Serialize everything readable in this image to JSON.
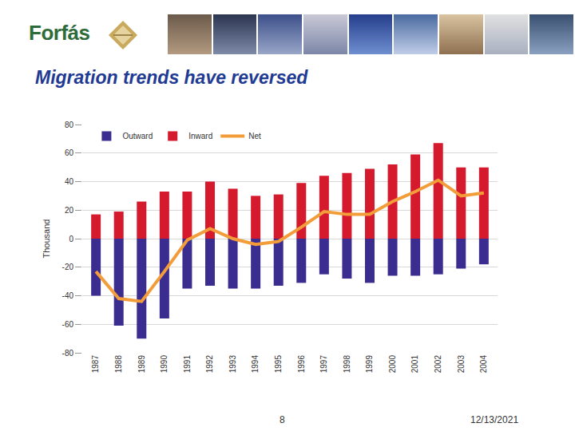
{
  "header": {
    "logo": "Forfás",
    "title": "Migration trends have reversed"
  },
  "footer": {
    "page": "8",
    "date": "12/13/2021"
  },
  "chart_data": {
    "type": "bar",
    "categories": [
      "1987",
      "1988",
      "1989",
      "1990",
      "1991",
      "1992",
      "1993",
      "1994",
      "1995",
      "1996",
      "1997",
      "1998",
      "1999",
      "2000",
      "2001",
      "2002",
      "2003",
      "2004"
    ],
    "series": [
      {
        "name": "Outward",
        "type": "bar",
        "color": "#3b2d8f",
        "values": [
          -40,
          -61,
          -70,
          -56,
          -35,
          -33,
          -35,
          -35,
          -33,
          -31,
          -25,
          -28,
          -31,
          -26,
          -26,
          -25,
          -21,
          -18
        ]
      },
      {
        "name": "Inward",
        "type": "bar",
        "color": "#d41a2c",
        "values": [
          17,
          19,
          26,
          33,
          33,
          40,
          35,
          30,
          31,
          39,
          44,
          46,
          49,
          52,
          59,
          67,
          50,
          50
        ]
      },
      {
        "name": "Net",
        "type": "line",
        "color": "#f39c3a",
        "values": [
          -23,
          -42,
          -44,
          -23,
          -1,
          7,
          0,
          -4,
          -2,
          8,
          19,
          17,
          17,
          26,
          33,
          41,
          30,
          32
        ]
      }
    ],
    "y_label": "Thousand",
    "ylim": [
      -80,
      80
    ],
    "yticks": [
      -80,
      -60,
      -40,
      -20,
      0,
      20,
      40,
      60,
      80
    ],
    "grid": true,
    "legend": "top left"
  }
}
